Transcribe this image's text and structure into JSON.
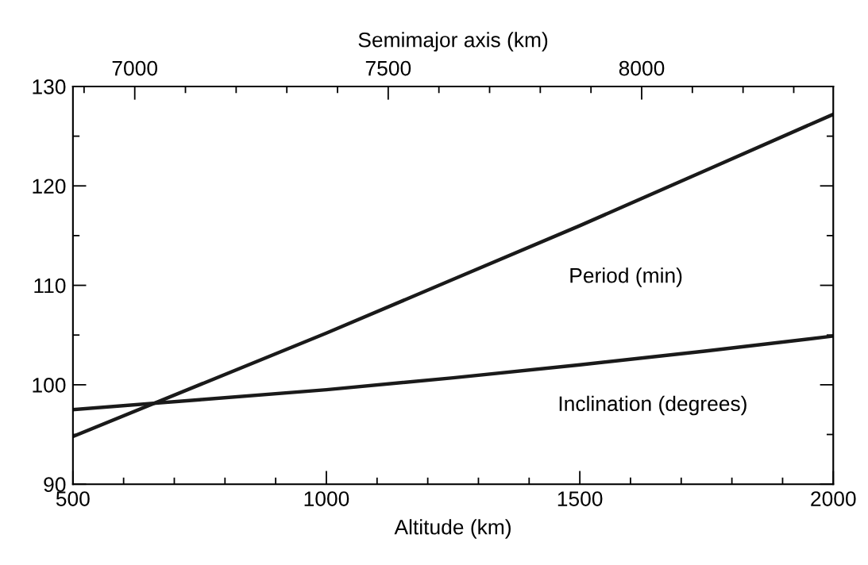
{
  "chart_data": {
    "type": "line",
    "xlabel": "Altitude (km)",
    "x2label": "Semimajor axis (km)",
    "x": [
      500,
      750,
      1000,
      1250,
      1500,
      1750,
      2000
    ],
    "series": [
      {
        "name": "Period (min)",
        "color": "#1a1a1a",
        "values": [
          94.8,
          100.0,
          105.2,
          110.6,
          116.0,
          121.6,
          127.2
        ]
      },
      {
        "name": "Inclination (degrees)",
        "color": "#1a1a1a",
        "values": [
          97.5,
          98.5,
          99.5,
          100.7,
          102.0,
          103.4,
          104.9
        ]
      }
    ],
    "xlim": [
      500,
      2000
    ],
    "xticks": [
      500,
      {
        "value": 600,
        "label": null
      },
      {
        "value": 700,
        "label": null
      },
      {
        "value": 800,
        "label": null
      },
      {
        "value": 900,
        "label": null
      },
      1000,
      {
        "value": 1100,
        "label": null
      },
      {
        "value": 1200,
        "label": null
      },
      {
        "value": 1300,
        "label": null
      },
      {
        "value": 1400,
        "label": null
      },
      1500,
      {
        "value": 1600,
        "label": null
      },
      {
        "value": 1700,
        "label": null
      },
      {
        "value": 1800,
        "label": null
      },
      {
        "value": 1900,
        "label": null
      },
      2000
    ],
    "x2lim": [
      6878,
      8378
    ],
    "x2ticks": [
      {
        "value": 6900,
        "label": null
      },
      7000,
      {
        "value": 7100,
        "label": null
      },
      {
        "value": 7200,
        "label": null
      },
      {
        "value": 7300,
        "label": null
      },
      {
        "value": 7400,
        "label": null
      },
      7500,
      {
        "value": 7600,
        "label": null
      },
      {
        "value": 7700,
        "label": null
      },
      {
        "value": 7800,
        "label": null
      },
      {
        "value": 7900,
        "label": null
      },
      8000,
      {
        "value": 8100,
        "label": null
      },
      {
        "value": 8200,
        "label": null
      },
      {
        "value": 8300,
        "label": null
      }
    ],
    "ylim": [
      90,
      130
    ],
    "yticks": [
      90,
      {
        "value": 95,
        "label": null
      },
      100,
      {
        "value": 105,
        "label": null
      },
      110,
      {
        "value": 115,
        "label": null
      },
      120,
      {
        "value": 125,
        "label": null
      },
      130
    ],
    "grid": false,
    "legend": false,
    "marker": "none",
    "line_style": "solid"
  }
}
